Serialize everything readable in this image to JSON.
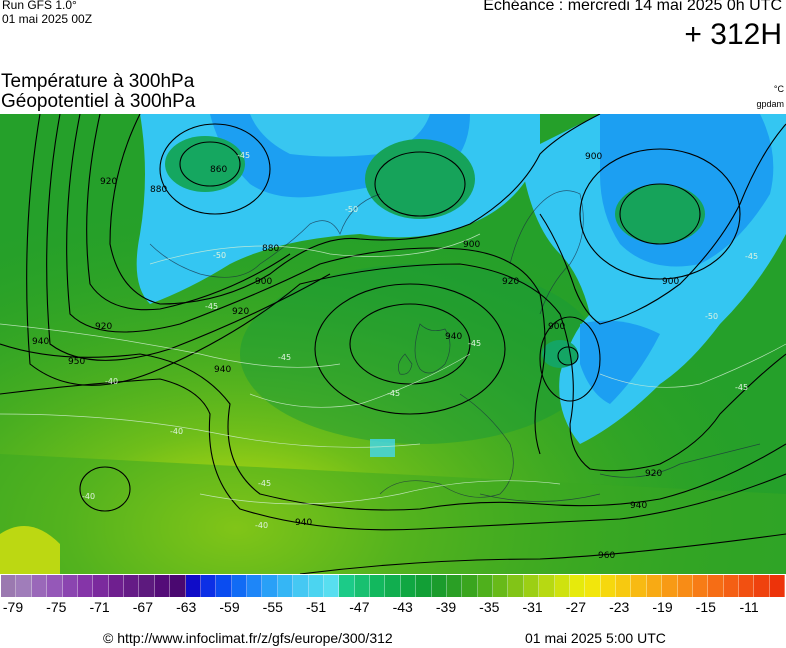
{
  "header": {
    "run_label": "Run GFS 1.0°",
    "run_date": "01 mai 2025 00Z",
    "echeance": "Echéance : mercredi 14 mai 2025 0h UTC",
    "lead_time": "+ 312H",
    "title_line1": "Température à 300hPa",
    "title_line2": "Géopotentiel à 300hPa",
    "unit_temperature": "°C",
    "unit_geopotential": "gpdam"
  },
  "map": {
    "geopotential_contour_labels": [
      "860",
      "880",
      "880",
      "900",
      "900",
      "900",
      "900",
      "900",
      "920",
      "920",
      "920",
      "920",
      "920",
      "940",
      "940",
      "940",
      "940",
      "940",
      "950",
      "960"
    ],
    "temperature_contour_labels": [
      "-45",
      "-45",
      "-45",
      "-45",
      "-45",
      "-45",
      "-45",
      "-45",
      "-50",
      "-50",
      "-50",
      "-40",
      "-40",
      "-40",
      "-40"
    ]
  },
  "legend": {
    "colors": [
      "#9b79b0",
      "#a07dba",
      "#9a68b9",
      "#9558b8",
      "#8b45b0",
      "#8535a8",
      "#7b2a9d",
      "#6f1f8f",
      "#651b86",
      "#5d1a7e",
      "#540c78",
      "#4a0870",
      "#0f0cc8",
      "#0c2fe6",
      "#0a4cf0",
      "#116bf5",
      "#1e86f8",
      "#29a0f7",
      "#35b6f5",
      "#45c8f3",
      "#4bd4f0",
      "#58def0",
      "#1ccb88",
      "#18c070",
      "#12b85e",
      "#11ae4f",
      "#10a742",
      "#129f36",
      "#1b9c2c",
      "#2a9f25",
      "#3aa51e",
      "#4fb01c",
      "#68ba19",
      "#82c417",
      "#9ccf14",
      "#b7d912",
      "#cfe20f",
      "#e6ea0c",
      "#f2e60c",
      "#f6d80e",
      "#f7c910",
      "#f8ba12",
      "#f8aa14",
      "#f89a15",
      "#f88c16",
      "#f77c16",
      "#f66d15",
      "#f45f14",
      "#f25011",
      "#ef420e",
      "#ed330a"
    ],
    "tick_labels": [
      "-79",
      "-75",
      "-71",
      "-67",
      "-63",
      "-59",
      "-55",
      "-51",
      "-47",
      "-43",
      "-39",
      "-35",
      "-31",
      "-27",
      "-23",
      "-19",
      "-15",
      "-11"
    ]
  },
  "footer": {
    "source_url": "© http://www.infoclimat.fr/z/gfs/europe/300/312",
    "issued": "01 mai 2025  5:00 UTC"
  }
}
